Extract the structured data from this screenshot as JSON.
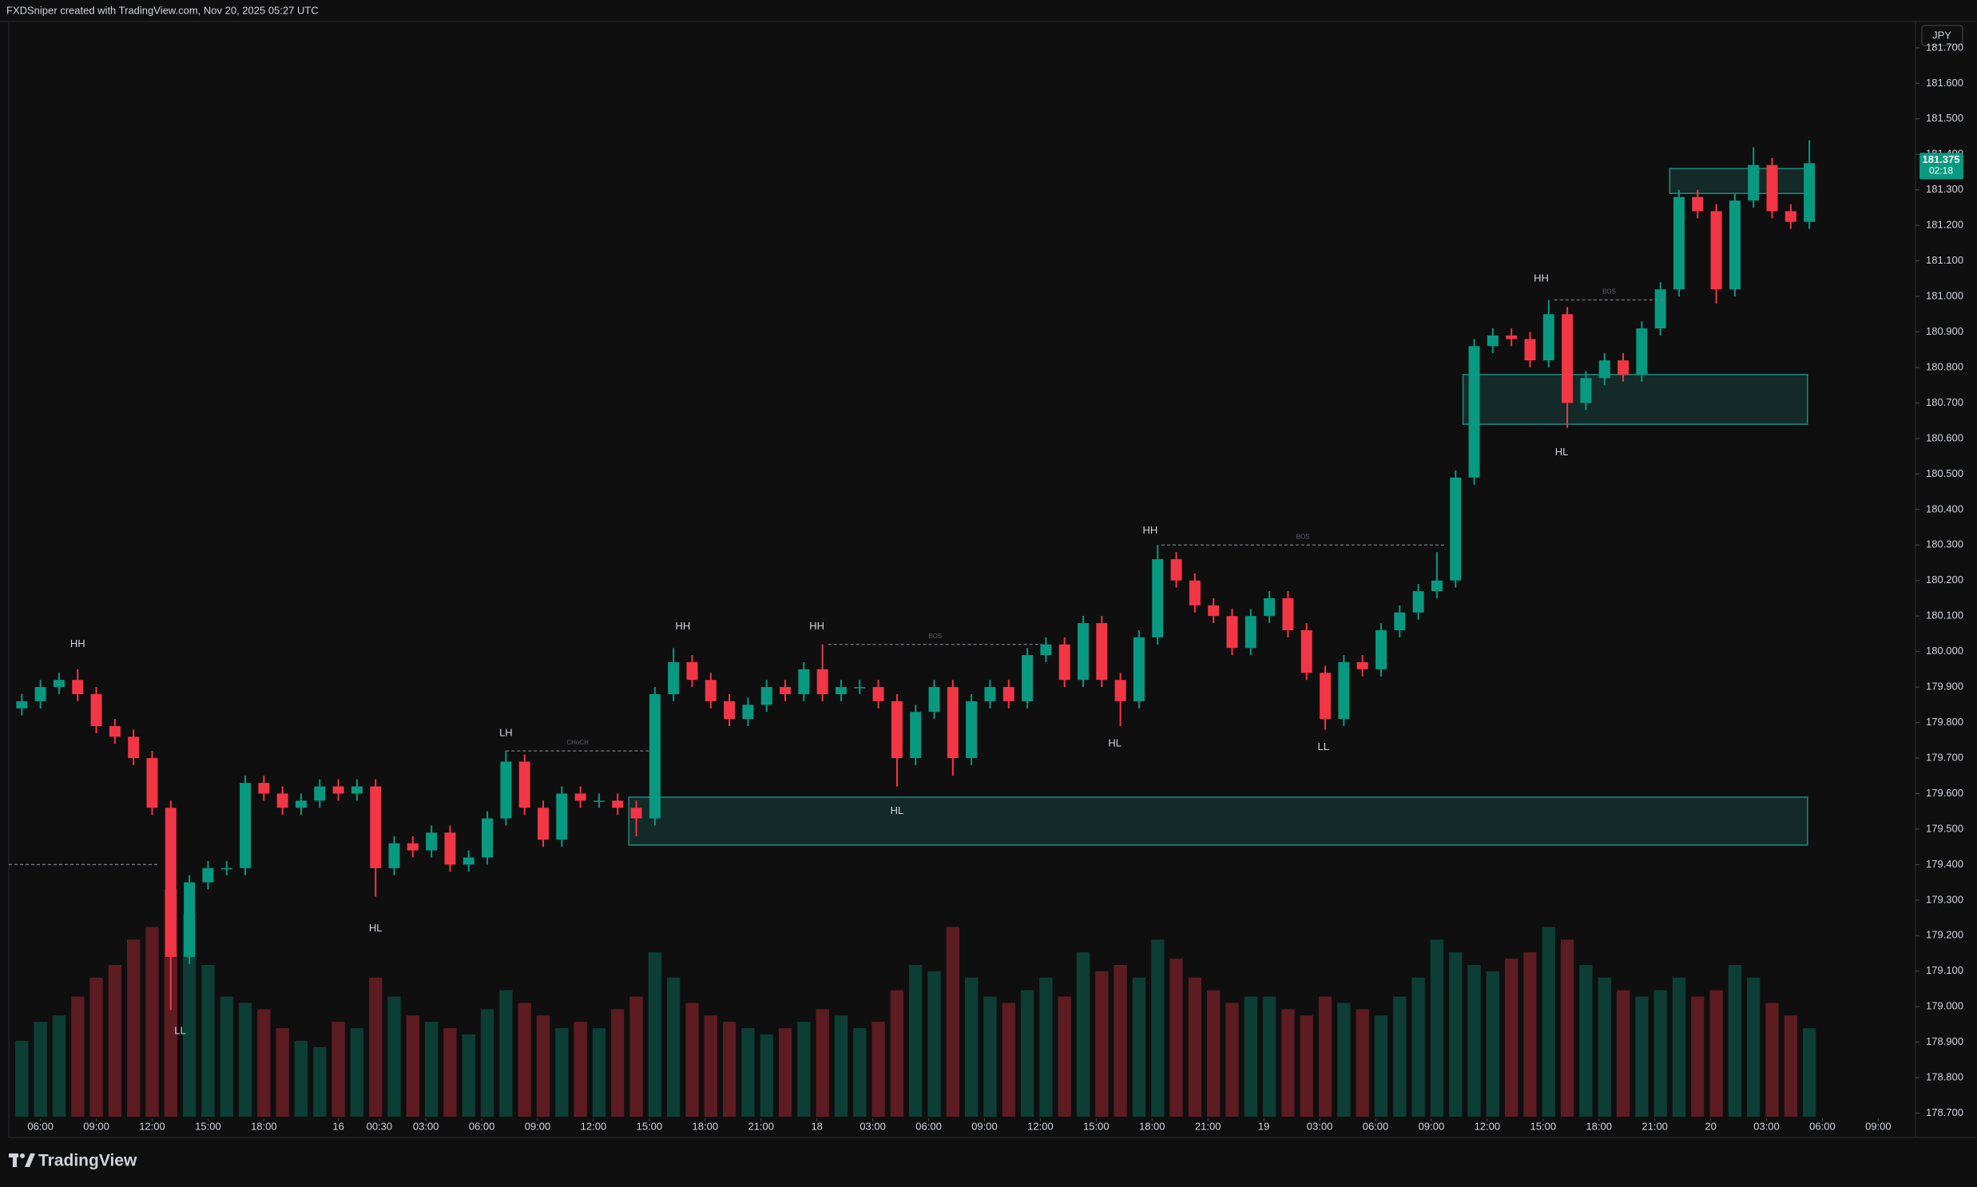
{
  "header": "FXDSniper created with TradingView.com, Nov 20, 2025 05:27 UTC",
  "footer": {
    "logo": "TradingView"
  },
  "chart_data": {
    "type": "candlestick",
    "currency": "JPY",
    "up_color": "#089981",
    "down_color": "#f23645",
    "zone_color": "#26a69a",
    "xlim": [
      4.3,
      106.7
    ],
    "ylim": [
      178.69,
      181.774
    ],
    "xticks": [
      {
        "value": 6,
        "label": "06:00"
      },
      {
        "value": 9,
        "label": "09:00"
      },
      {
        "value": 12,
        "label": "12:00"
      },
      {
        "value": 15,
        "label": "15:00"
      },
      {
        "value": 18,
        "label": "18:00"
      },
      {
        "value": 22,
        "label": "16"
      },
      {
        "value": 24.2,
        "label": "00:30"
      },
      {
        "value": 26.7,
        "label": "03:00"
      },
      {
        "value": 29.7,
        "label": "06:00"
      },
      {
        "value": 32.7,
        "label": "09:00"
      },
      {
        "value": 35.7,
        "label": "12:00"
      },
      {
        "value": 38.7,
        "label": "15:00"
      },
      {
        "value": 41.7,
        "label": "18:00"
      },
      {
        "value": 44.7,
        "label": "21:00"
      },
      {
        "value": 47.7,
        "label": "18"
      },
      {
        "value": 50.7,
        "label": "03:00"
      },
      {
        "value": 53.7,
        "label": "06:00"
      },
      {
        "value": 56.7,
        "label": "09:00"
      },
      {
        "value": 59.7,
        "label": "12:00"
      },
      {
        "value": 62.7,
        "label": "15:00"
      },
      {
        "value": 65.7,
        "label": "18:00"
      },
      {
        "value": 68.7,
        "label": "21:00"
      },
      {
        "value": 71.7,
        "label": "19"
      },
      {
        "value": 74.7,
        "label": "03:00"
      },
      {
        "value": 77.7,
        "label": "06:00"
      },
      {
        "value": 80.7,
        "label": "09:00"
      },
      {
        "value": 83.7,
        "label": "12:00"
      },
      {
        "value": 86.7,
        "label": "15:00"
      },
      {
        "value": 89.7,
        "label": "18:00"
      },
      {
        "value": 92.7,
        "label": "21:00"
      },
      {
        "value": 95.7,
        "label": "20"
      },
      {
        "value": 98.7,
        "label": "03:00"
      },
      {
        "value": 101.7,
        "label": "06:00"
      },
      {
        "value": 104.7,
        "label": "09:00"
      }
    ],
    "yticks": [
      {
        "value": 178.7,
        "label": "178.700"
      },
      {
        "value": 178.8,
        "label": "178.800"
      },
      {
        "value": 178.9,
        "label": "178.900"
      },
      {
        "value": 179.0,
        "label": "179.000"
      },
      {
        "value": 179.1,
        "label": "179.100"
      },
      {
        "value": 179.2,
        "label": "179.200"
      },
      {
        "value": 179.3,
        "label": "179.300"
      },
      {
        "value": 179.4,
        "label": "179.400"
      },
      {
        "value": 179.5,
        "label": "179.500"
      },
      {
        "value": 179.6,
        "label": "179.600"
      },
      {
        "value": 179.7,
        "label": "179.700"
      },
      {
        "value": 179.8,
        "label": "179.800"
      },
      {
        "value": 179.9,
        "label": "179.900"
      },
      {
        "value": 180.0,
        "label": "180.000"
      },
      {
        "value": 180.1,
        "label": "180.100"
      },
      {
        "value": 180.2,
        "label": "180.200"
      },
      {
        "value": 180.3,
        "label": "180.300"
      },
      {
        "value": 180.4,
        "label": "180.400"
      },
      {
        "value": 180.5,
        "label": "180.500"
      },
      {
        "value": 180.6,
        "label": "180.600"
      },
      {
        "value": 180.7,
        "label": "180.700"
      },
      {
        "value": 180.8,
        "label": "180.800"
      },
      {
        "value": 180.9,
        "label": "180.900"
      },
      {
        "value": 181.0,
        "label": "181.000"
      },
      {
        "value": 181.1,
        "label": "181.100"
      },
      {
        "value": 181.2,
        "label": "181.200"
      },
      {
        "value": 181.3,
        "label": "181.300"
      },
      {
        "value": 181.4,
        "label": "181.400"
      },
      {
        "value": 181.5,
        "label": "181.500"
      },
      {
        "value": 181.6,
        "label": "181.600"
      },
      {
        "value": 181.7,
        "label": "181.700"
      }
    ],
    "candles": {
      "x": [
        5,
        6,
        7,
        8,
        9,
        10,
        11,
        12,
        13,
        14,
        15,
        16,
        17,
        18,
        19,
        20,
        21,
        22,
        23,
        24,
        25,
        26,
        27,
        28,
        29,
        30,
        31,
        32,
        33,
        34,
        35,
        36,
        37,
        38,
        39,
        40,
        41,
        42,
        43,
        44,
        45,
        46,
        47,
        48,
        49,
        50,
        51,
        52,
        53,
        54,
        55,
        56,
        57,
        58,
        59,
        60,
        61,
        62,
        63,
        64,
        65,
        66,
        67,
        68,
        69,
        70,
        71,
        72,
        73,
        74,
        75,
        76,
        77,
        78,
        79,
        80,
        81,
        82,
        83,
        84,
        85,
        86,
        87,
        88,
        89,
        90,
        91,
        92,
        93,
        94,
        95,
        96,
        97,
        98,
        99,
        100,
        101
      ],
      "open": [
        179.84,
        179.86,
        179.9,
        179.92,
        179.88,
        179.79,
        179.76,
        179.7,
        179.56,
        179.14,
        179.35,
        179.39,
        179.39,
        179.63,
        179.6,
        179.56,
        179.58,
        179.62,
        179.6,
        179.62,
        179.39,
        179.46,
        179.44,
        179.49,
        179.4,
        179.42,
        179.53,
        179.69,
        179.56,
        179.47,
        179.6,
        179.58,
        179.58,
        179.56,
        179.53,
        179.88,
        179.97,
        179.92,
        179.86,
        179.81,
        179.85,
        179.9,
        179.88,
        179.95,
        179.88,
        179.9,
        179.9,
        179.86,
        179.7,
        179.83,
        179.9,
        179.7,
        179.86,
        179.9,
        179.86,
        179.99,
        180.02,
        179.92,
        180.08,
        179.92,
        179.86,
        180.04,
        180.26,
        180.2,
        180.13,
        180.1,
        180.01,
        180.1,
        180.15,
        180.06,
        179.94,
        179.81,
        179.97,
        179.95,
        180.06,
        180.11,
        180.17,
        180.2,
        180.49,
        180.86,
        180.89,
        180.88,
        180.82,
        180.95,
        180.7,
        180.77,
        180.82,
        180.78,
        180.91,
        181.02,
        181.28,
        181.24,
        181.02,
        181.27,
        181.37,
        181.24,
        181.21
      ],
      "high": [
        179.88,
        179.92,
        179.94,
        179.95,
        179.9,
        179.81,
        179.78,
        179.72,
        179.58,
        179.37,
        179.41,
        179.41,
        179.65,
        179.65,
        179.62,
        179.6,
        179.64,
        179.64,
        179.64,
        179.64,
        179.48,
        179.48,
        179.51,
        179.51,
        179.44,
        179.55,
        179.72,
        179.71,
        179.58,
        179.62,
        179.62,
        179.6,
        179.6,
        179.58,
        179.9,
        180.01,
        179.99,
        179.94,
        179.88,
        179.87,
        179.92,
        179.92,
        179.97,
        180.02,
        179.92,
        179.92,
        179.92,
        179.88,
        179.85,
        179.92,
        179.92,
        179.88,
        179.92,
        179.92,
        180.01,
        180.04,
        180.04,
        180.1,
        180.1,
        179.94,
        180.06,
        180.3,
        180.28,
        180.22,
        180.15,
        180.12,
        180.12,
        180.17,
        180.17,
        180.08,
        179.96,
        179.99,
        179.99,
        180.08,
        180.13,
        180.19,
        180.28,
        180.51,
        180.88,
        180.91,
        180.91,
        180.9,
        180.99,
        180.97,
        180.79,
        180.84,
        180.84,
        180.93,
        181.04,
        181.3,
        181.3,
        181.26,
        181.29,
        181.42,
        181.39,
        181.26,
        181.44
      ],
      "low": [
        179.82,
        179.84,
        179.88,
        179.86,
        179.77,
        179.74,
        179.68,
        179.54,
        178.99,
        179.12,
        179.33,
        179.37,
        179.37,
        179.58,
        179.54,
        179.54,
        179.56,
        179.58,
        179.58,
        179.31,
        179.37,
        179.42,
        179.42,
        179.38,
        179.38,
        179.4,
        179.51,
        179.54,
        179.45,
        179.45,
        179.56,
        179.56,
        179.54,
        179.48,
        179.51,
        179.86,
        179.9,
        179.84,
        179.79,
        179.79,
        179.83,
        179.86,
        179.86,
        179.86,
        179.86,
        179.88,
        179.84,
        179.62,
        179.68,
        179.81,
        179.65,
        179.68,
        179.84,
        179.84,
        179.84,
        179.97,
        179.9,
        179.9,
        179.9,
        179.79,
        179.84,
        180.02,
        180.18,
        180.11,
        180.08,
        179.99,
        179.99,
        180.08,
        180.04,
        179.92,
        179.78,
        179.79,
        179.93,
        179.93,
        180.04,
        180.09,
        180.15,
        180.18,
        180.47,
        180.84,
        180.86,
        180.8,
        180.8,
        180.63,
        180.68,
        180.75,
        180.76,
        180.76,
        180.89,
        181.0,
        181.22,
        180.98,
        181.0,
        181.25,
        181.22,
        181.19,
        181.19
      ],
      "close": [
        179.86,
        179.9,
        179.92,
        179.88,
        179.79,
        179.76,
        179.7,
        179.56,
        179.14,
        179.35,
        179.39,
        179.39,
        179.63,
        179.6,
        179.56,
        179.58,
        179.62,
        179.6,
        179.62,
        179.39,
        179.46,
        179.44,
        179.49,
        179.4,
        179.42,
        179.53,
        179.69,
        179.56,
        179.47,
        179.6,
        179.58,
        179.58,
        179.56,
        179.53,
        179.88,
        179.97,
        179.92,
        179.86,
        179.81,
        179.85,
        179.9,
        179.88,
        179.95,
        179.88,
        179.9,
        179.9,
        179.86,
        179.7,
        179.83,
        179.9,
        179.7,
        179.86,
        179.9,
        179.86,
        179.99,
        180.02,
        179.92,
        180.08,
        179.92,
        179.86,
        180.04,
        180.26,
        180.2,
        180.13,
        180.1,
        180.01,
        180.1,
        180.15,
        180.06,
        179.94,
        179.81,
        179.97,
        179.95,
        180.06,
        180.11,
        180.17,
        180.2,
        180.49,
        180.86,
        180.89,
        180.88,
        180.82,
        180.95,
        180.7,
        180.77,
        180.82,
        180.78,
        180.91,
        181.02,
        181.28,
        181.24,
        181.02,
        181.27,
        181.37,
        181.24,
        181.21,
        181.375
      ],
      "volume": [
        60,
        75,
        80,
        95,
        110,
        120,
        140,
        150,
        180,
        160,
        120,
        95,
        90,
        85,
        70,
        60,
        55,
        75,
        70,
        110,
        95,
        80,
        75,
        70,
        65,
        85,
        100,
        90,
        80,
        70,
        75,
        70,
        85,
        95,
        130,
        110,
        90,
        80,
        75,
        70,
        65,
        70,
        75,
        85,
        80,
        70,
        75,
        100,
        120,
        115,
        150,
        110,
        95,
        90,
        100,
        110,
        95,
        130,
        115,
        120,
        110,
        140,
        125,
        110,
        100,
        90,
        95,
        95,
        85,
        80,
        95,
        90,
        85,
        80,
        95,
        110,
        140,
        130,
        120,
        115,
        125,
        130,
        150,
        140,
        120,
        110,
        100,
        95,
        100,
        110,
        95,
        100,
        120,
        110,
        90,
        80,
        70
      ]
    },
    "zones": [
      {
        "x": [
          37.6,
          100.9
        ],
        "y": [
          179.455,
          179.59
        ]
      },
      {
        "x": [
          82.4,
          100.9
        ],
        "y": [
          180.64,
          180.78
        ]
      },
      {
        "x": [
          93.5,
          100.9
        ],
        "y": [
          181.29,
          181.36
        ]
      }
    ],
    "levels": [
      {
        "x": [
          4.3,
          12.3
        ],
        "y": 179.4
      },
      {
        "label": "CHoCH",
        "x": [
          31,
          38.7
        ],
        "y": 179.72
      },
      {
        "label": "BOS",
        "x": [
          48.3,
          59.8
        ],
        "y": 180.02
      },
      {
        "label": "BOS",
        "x": [
          66.2,
          81.4
        ],
        "y": 180.3
      },
      {
        "label": "BOS",
        "x": [
          87.3,
          93.2
        ],
        "y": 180.99
      }
    ],
    "labels": [
      {
        "text": "HH",
        "x": 8.0,
        "y": 180.02
      },
      {
        "text": "LL",
        "x": 13.5,
        "y": 178.93
      },
      {
        "text": "HL",
        "x": 24.0,
        "y": 179.22
      },
      {
        "text": "LH",
        "x": 31.0,
        "y": 179.77
      },
      {
        "text": "HH",
        "x": 40.5,
        "y": 180.07
      },
      {
        "text": "HH",
        "x": 47.7,
        "y": 180.07
      },
      {
        "text": "HL",
        "x": 52.0,
        "y": 179.55
      },
      {
        "text": "HL",
        "x": 63.7,
        "y": 179.74
      },
      {
        "text": "HH",
        "x": 65.6,
        "y": 180.34
      },
      {
        "text": "LL",
        "x": 74.9,
        "y": 179.73
      },
      {
        "text": "HH",
        "x": 86.6,
        "y": 181.05
      },
      {
        "text": "HL",
        "x": 87.7,
        "y": 180.56
      }
    ],
    "last_price": {
      "value": 181.375,
      "countdown": "02:18"
    }
  }
}
